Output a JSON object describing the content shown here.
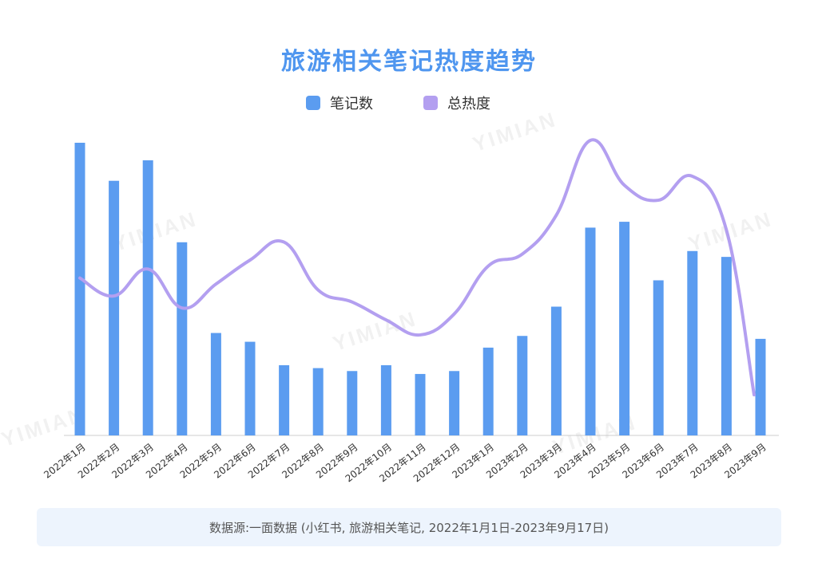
{
  "watermark": "YIMIAN",
  "source_text": "数据源:一面数据 (小红书, 旅游相关笔记, 2022年1月1日-2023年9月17日)",
  "chart_data": {
    "type": "bar",
    "title": "旅游相关笔记热度趋势",
    "categories": [
      "2022年1月",
      "2022年2月",
      "2022年3月",
      "2022年4月",
      "2022年5月",
      "2022年6月",
      "2022年7月",
      "2022年8月",
      "2022年9月",
      "2022年10月",
      "2022年11月",
      "2022年12月",
      "2023年1月",
      "2023年2月",
      "2023年3月",
      "2023年4月",
      "2023年5月",
      "2023年6月",
      "2023年7月",
      "2023年8月",
      "2023年9月"
    ],
    "series": [
      {
        "name": "笔记数",
        "type": "bar",
        "color": "#5b9cf0",
        "values": [
          100,
          87,
          94,
          66,
          35,
          32,
          24,
          23,
          22,
          24,
          21,
          22,
          30,
          34,
          44,
          71,
          73,
          53,
          63,
          61,
          33
        ]
      },
      {
        "name": "总热度",
        "type": "line",
        "color": "#b39ff0",
        "smooth": true,
        "values": [
          54,
          48,
          57,
          44,
          52,
          60,
          66,
          50,
          46,
          40,
          35,
          42,
          58,
          62,
          75,
          100,
          85,
          80,
          88,
          70,
          15
        ]
      }
    ],
    "ylim": [
      0,
      100
    ],
    "grid": false,
    "legend_position": "top-center"
  }
}
